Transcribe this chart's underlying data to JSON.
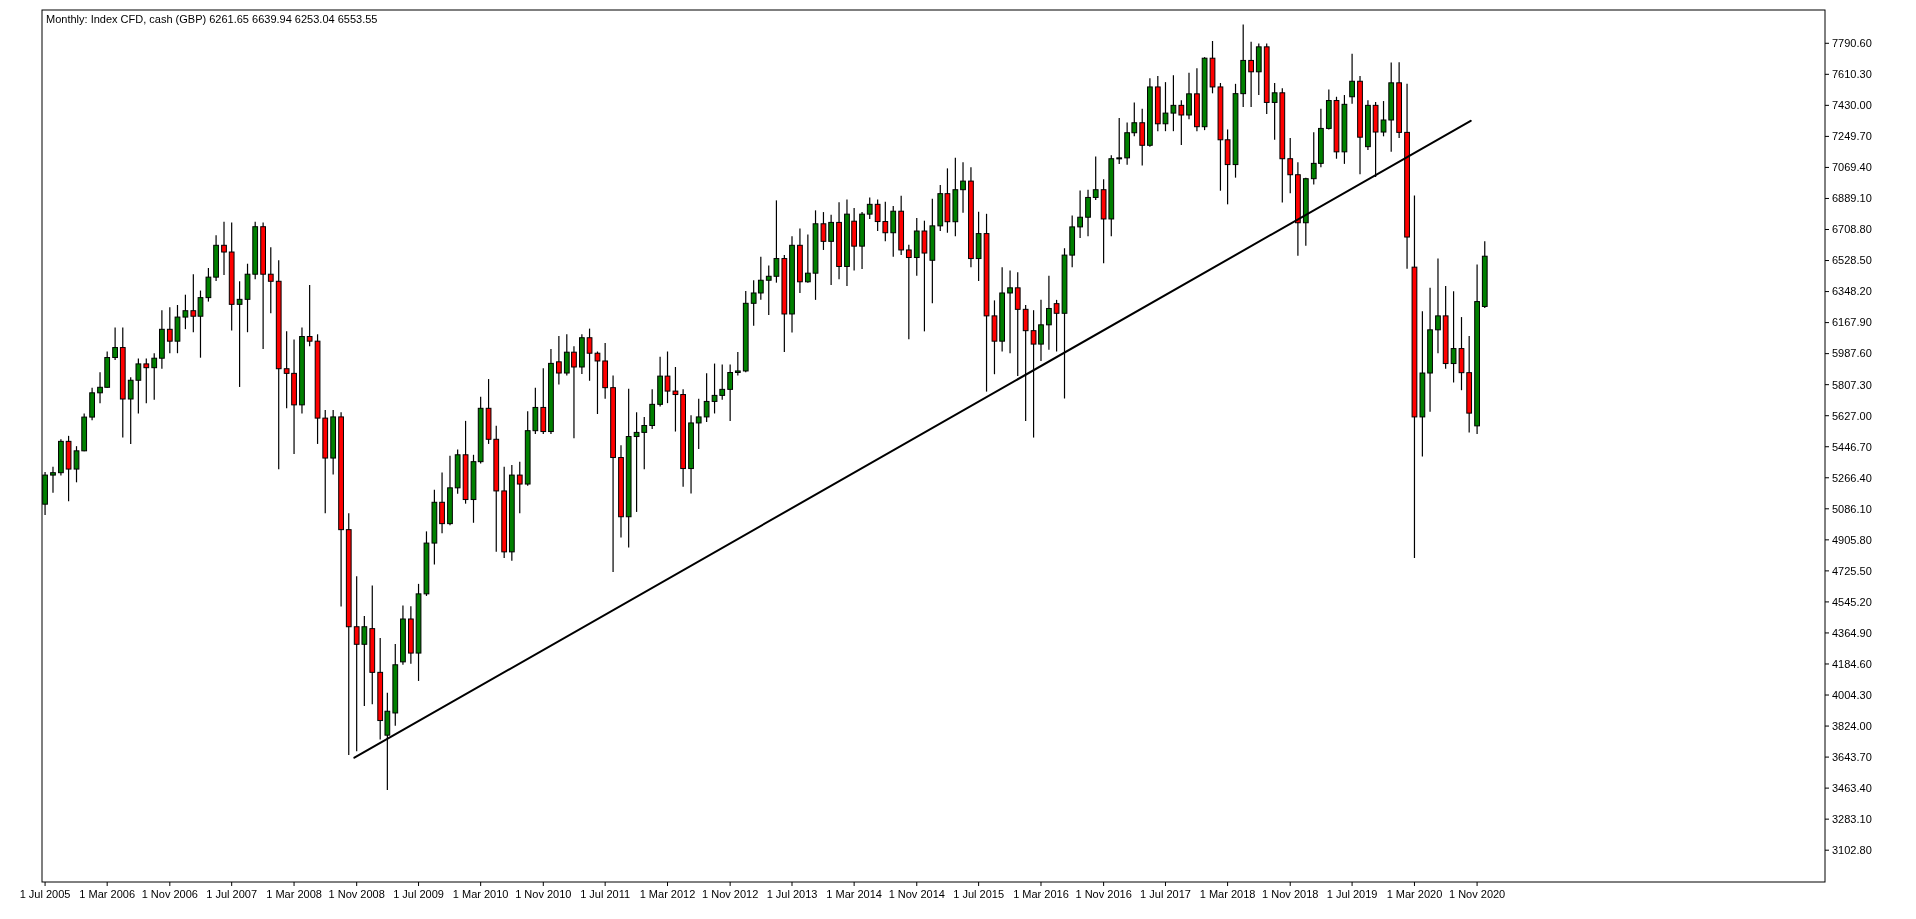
{
  "chart_data": {
    "type": "candlestick",
    "title": "Monthly: Index CFD, cash (GBP)  6261.65 6639.94 6253.04 6553.55",
    "x": [
      "2005-07",
      "2005-08",
      "2005-09",
      "2005-10",
      "2005-11",
      "2005-12",
      "2006-01",
      "2006-02",
      "2006-03",
      "2006-04",
      "2006-05",
      "2006-06",
      "2006-07",
      "2006-08",
      "2006-09",
      "2006-10",
      "2006-11",
      "2006-12",
      "2007-01",
      "2007-02",
      "2007-03",
      "2007-04",
      "2007-05",
      "2007-06",
      "2007-07",
      "2007-08",
      "2007-09",
      "2007-10",
      "2007-11",
      "2007-12",
      "2008-01",
      "2008-02",
      "2008-03",
      "2008-04",
      "2008-05",
      "2008-06",
      "2008-07",
      "2008-08",
      "2008-09",
      "2008-10",
      "2008-11",
      "2008-12",
      "2009-01",
      "2009-02",
      "2009-03",
      "2009-04",
      "2009-05",
      "2009-06",
      "2009-07",
      "2009-08",
      "2009-09",
      "2009-10",
      "2009-11",
      "2009-12",
      "2010-01",
      "2010-02",
      "2010-03",
      "2010-04",
      "2010-05",
      "2010-06",
      "2010-07",
      "2010-08",
      "2010-09",
      "2010-10",
      "2010-11",
      "2010-12",
      "2011-01",
      "2011-02",
      "2011-03",
      "2011-04",
      "2011-05",
      "2011-06",
      "2011-07",
      "2011-08",
      "2011-09",
      "2011-10",
      "2011-11",
      "2011-12",
      "2012-01",
      "2012-02",
      "2012-03",
      "2012-04",
      "2012-05",
      "2012-06",
      "2012-07",
      "2012-08",
      "2012-09",
      "2012-10",
      "2012-11",
      "2012-12",
      "2013-01",
      "2013-02",
      "2013-03",
      "2013-04",
      "2013-05",
      "2013-06",
      "2013-07",
      "2013-08",
      "2013-09",
      "2013-10",
      "2013-11",
      "2013-12",
      "2014-01",
      "2014-02",
      "2014-03",
      "2014-04",
      "2014-05",
      "2014-06",
      "2014-07",
      "2014-08",
      "2014-09",
      "2014-10",
      "2014-11",
      "2014-12",
      "2015-01",
      "2015-02",
      "2015-03",
      "2015-04",
      "2015-05",
      "2015-06",
      "2015-07",
      "2015-08",
      "2015-09",
      "2015-10",
      "2015-11",
      "2015-12",
      "2016-01",
      "2016-02",
      "2016-03",
      "2016-04",
      "2016-05",
      "2016-06",
      "2016-07",
      "2016-08",
      "2016-09",
      "2016-10",
      "2016-11",
      "2016-12",
      "2017-01",
      "2017-02",
      "2017-03",
      "2017-04",
      "2017-05",
      "2017-06",
      "2017-07",
      "2017-08",
      "2017-09",
      "2017-10",
      "2017-11",
      "2017-12",
      "2018-01",
      "2018-02",
      "2018-03",
      "2018-04",
      "2018-05",
      "2018-06",
      "2018-07",
      "2018-08",
      "2018-09",
      "2018-10",
      "2018-11",
      "2018-12",
      "2019-01",
      "2019-02",
      "2019-03",
      "2019-04",
      "2019-05",
      "2019-06",
      "2019-07",
      "2019-08",
      "2019-09",
      "2019-10",
      "2019-11",
      "2019-12",
      "2020-01",
      "2020-02",
      "2020-03",
      "2020-04",
      "2020-05",
      "2020-06",
      "2020-07",
      "2020-08",
      "2020-09",
      "2020-10",
      "2020-11",
      "2020-12"
    ],
    "ohlc": [
      [
        5113,
        5300,
        5050,
        5282
      ],
      [
        5282,
        5330,
        5180,
        5296
      ],
      [
        5296,
        5490,
        5280,
        5478
      ],
      [
        5478,
        5510,
        5130,
        5317
      ],
      [
        5317,
        5450,
        5240,
        5423
      ],
      [
        5423,
        5640,
        5420,
        5619
      ],
      [
        5619,
        5790,
        5600,
        5760
      ],
      [
        5760,
        5880,
        5700,
        5792
      ],
      [
        5792,
        6000,
        5790,
        5965
      ],
      [
        5965,
        6140,
        5950,
        6023
      ],
      [
        6023,
        6140,
        5500,
        5724
      ],
      [
        5724,
        5850,
        5463,
        5833
      ],
      [
        5833,
        5960,
        5640,
        5928
      ],
      [
        5928,
        5960,
        5700,
        5906
      ],
      [
        5906,
        5990,
        5720,
        5961
      ],
      [
        5961,
        6240,
        5900,
        6129
      ],
      [
        6129,
        6257,
        5990,
        6060
      ],
      [
        6060,
        6270,
        5990,
        6200
      ],
      [
        6200,
        6330,
        6130,
        6237
      ],
      [
        6237,
        6449,
        6112,
        6205
      ],
      [
        6205,
        6354,
        5964,
        6313
      ],
      [
        6313,
        6485,
        6290,
        6432
      ],
      [
        6432,
        6676,
        6410,
        6617
      ],
      [
        6617,
        6754,
        6445,
        6578
      ],
      [
        6578,
        6749,
        6122,
        6274
      ],
      [
        6274,
        6408,
        5794,
        6303
      ],
      [
        6303,
        6510,
        6112,
        6449
      ],
      [
        6449,
        6754,
        6420,
        6725
      ],
      [
        6725,
        6749,
        6015,
        6449
      ],
      [
        6449,
        6606,
        6222,
        6408
      ],
      [
        6408,
        6530,
        5316,
        5900
      ],
      [
        5900,
        6117,
        5670,
        5873
      ],
      [
        5873,
        6070,
        5405,
        5690
      ],
      [
        5690,
        6139,
        5640,
        6087
      ],
      [
        6087,
        6386,
        6030,
        6060
      ],
      [
        6060,
        6100,
        5463,
        5613
      ],
      [
        5613,
        5660,
        5061,
        5381
      ],
      [
        5381,
        5660,
        5286,
        5620
      ],
      [
        5620,
        5647,
        4519,
        4965
      ],
      [
        4965,
        5060,
        3656,
        4401
      ],
      [
        4401,
        4694,
        3677,
        4299
      ],
      [
        4299,
        4463,
        3940,
        4401
      ],
      [
        4390,
        4640,
        3950,
        4136
      ],
      [
        4136,
        4335,
        3746,
        3856
      ],
      [
        3771,
        4017,
        3452,
        3910
      ],
      [
        3900,
        4300,
        3826,
        4180
      ],
      [
        4197,
        4525,
        4180,
        4446
      ],
      [
        4446,
        4520,
        4186,
        4248
      ],
      [
        4248,
        4650,
        4086,
        4592
      ],
      [
        4592,
        4955,
        4580,
        4887
      ],
      [
        4887,
        5197,
        4763,
        5124
      ],
      [
        5124,
        5297,
        4944,
        5000
      ],
      [
        5000,
        5395,
        4990,
        5208
      ],
      [
        5208,
        5430,
        5174,
        5400
      ],
      [
        5400,
        5597,
        5116,
        5140
      ],
      [
        5140,
        5400,
        5005,
        5360
      ],
      [
        5360,
        5737,
        5350,
        5670
      ],
      [
        5670,
        5840,
        5463,
        5490
      ],
      [
        5490,
        5568,
        4836,
        5190
      ],
      [
        5190,
        5330,
        4800,
        4836
      ],
      [
        4836,
        5340,
        4784,
        5282
      ],
      [
        5282,
        5360,
        5060,
        5230
      ],
      [
        5230,
        5653,
        5220,
        5540
      ],
      [
        5540,
        5789,
        5520,
        5675
      ],
      [
        5675,
        5902,
        5520,
        5535
      ],
      [
        5535,
        6014,
        5520,
        5931
      ],
      [
        5940,
        6090,
        5808,
        5875
      ],
      [
        5875,
        6100,
        5860,
        5996
      ],
      [
        5996,
        6030,
        5496,
        5910
      ],
      [
        5910,
        6100,
        5870,
        6080
      ],
      [
        6080,
        6133,
        5830,
        5990
      ],
      [
        5990,
        6000,
        5637,
        5945
      ],
      [
        5945,
        6050,
        5726,
        5790
      ],
      [
        5790,
        5860,
        4719,
        5384
      ],
      [
        5384,
        5455,
        4920,
        5040
      ],
      [
        5040,
        5783,
        4862,
        5506
      ],
      [
        5506,
        5647,
        5068,
        5530
      ],
      [
        5530,
        5620,
        5316,
        5570
      ],
      [
        5570,
        5780,
        5550,
        5693
      ],
      [
        5693,
        5970,
        5680,
        5857
      ],
      [
        5857,
        6000,
        5700,
        5770
      ],
      [
        5770,
        5910,
        5535,
        5750
      ],
      [
        5750,
        5780,
        5214,
        5320
      ],
      [
        5320,
        5630,
        5175,
        5585
      ],
      [
        5585,
        5726,
        5433,
        5620
      ],
      [
        5620,
        5874,
        5590,
        5710
      ],
      [
        5710,
        5930,
        5640,
        5745
      ],
      [
        5745,
        5925,
        5720,
        5780
      ],
      [
        5780,
        5925,
        5596,
        5878
      ],
      [
        5878,
        5997,
        5860,
        5887
      ],
      [
        5887,
        6352,
        5880,
        6280
      ],
      [
        6280,
        6414,
        6150,
        6340
      ],
      [
        6340,
        6550,
        6300,
        6414
      ],
      [
        6414,
        6499,
        6212,
        6437
      ],
      [
        6437,
        6878,
        6400,
        6540
      ],
      [
        6540,
        6560,
        5997,
        6218
      ],
      [
        6218,
        6670,
        6110,
        6617
      ],
      [
        6617,
        6715,
        6340,
        6405
      ],
      [
        6405,
        6680,
        6400,
        6455
      ],
      [
        6455,
        6820,
        6300,
        6742
      ],
      [
        6742,
        6810,
        6590,
        6640
      ],
      [
        6640,
        6795,
        6386,
        6750
      ],
      [
        6750,
        6867,
        6420,
        6494
      ],
      [
        6494,
        6883,
        6380,
        6798
      ],
      [
        6757,
        6833,
        6470,
        6612
      ],
      [
        6612,
        6810,
        6480,
        6798
      ],
      [
        6798,
        6894,
        6770,
        6855
      ],
      [
        6855,
        6883,
        6700,
        6755
      ],
      [
        6755,
        6870,
        6640,
        6690
      ],
      [
        6690,
        6845,
        6550,
        6815
      ],
      [
        6815,
        6905,
        6560,
        6590
      ],
      [
        6590,
        6620,
        6071,
        6546
      ],
      [
        6546,
        6775,
        6440,
        6700
      ],
      [
        6700,
        6760,
        6117,
        6572
      ],
      [
        6530,
        6888,
        6280,
        6730
      ],
      [
        6730,
        6968,
        6700,
        6917
      ],
      [
        6917,
        7064,
        6690,
        6754
      ],
      [
        6754,
        7126,
        6670,
        6940
      ],
      [
        6940,
        7100,
        6806,
        6990
      ],
      [
        6990,
        7070,
        6490,
        6540
      ],
      [
        6540,
        6812,
        6410,
        6685
      ],
      [
        6685,
        6800,
        5767,
        6207
      ],
      [
        6207,
        6297,
        5868,
        6060
      ],
      [
        6060,
        6490,
        6000,
        6340
      ],
      [
        6340,
        6470,
        5990,
        6370
      ],
      [
        6370,
        6460,
        5857,
        6245
      ],
      [
        6245,
        6270,
        5596,
        6121
      ],
      [
        6121,
        6240,
        5500,
        6043
      ],
      [
        6043,
        6300,
        5945,
        6155
      ],
      [
        6155,
        6440,
        6010,
        6250
      ],
      [
        6278,
        6300,
        6000,
        6222
      ],
      [
        6222,
        6600,
        5727,
        6560
      ],
      [
        6560,
        6790,
        6490,
        6724
      ],
      [
        6724,
        6935,
        6660,
        6780
      ],
      [
        6780,
        6940,
        6670,
        6895
      ],
      [
        6895,
        7133,
        6880,
        6940
      ],
      [
        6940,
        7000,
        6513,
        6770
      ],
      [
        6770,
        7140,
        6670,
        7120
      ],
      [
        7120,
        7357,
        7090,
        7125
      ],
      [
        7125,
        7330,
        7085,
        7271
      ],
      [
        7271,
        7446,
        7250,
        7329
      ],
      [
        7329,
        7410,
        7080,
        7198
      ],
      [
        7198,
        7588,
        7190,
        7537
      ],
      [
        7537,
        7600,
        7280,
        7323
      ],
      [
        7323,
        7565,
        7280,
        7385
      ],
      [
        7385,
        7605,
        7280,
        7430
      ],
      [
        7430,
        7460,
        7200,
        7374
      ],
      [
        7374,
        7620,
        7350,
        7497
      ],
      [
        7497,
        7645,
        7280,
        7306
      ],
      [
        7306,
        7710,
        7286,
        7704
      ],
      [
        7704,
        7804,
        7500,
        7537
      ],
      [
        7537,
        7560,
        6934,
        7230
      ],
      [
        7230,
        7290,
        6855,
        7086
      ],
      [
        7086,
        7555,
        7010,
        7498
      ],
      [
        7498,
        7900,
        7420,
        7691
      ],
      [
        7691,
        7800,
        7420,
        7625
      ],
      [
        7625,
        7790,
        7490,
        7770
      ],
      [
        7770,
        7790,
        7380,
        7447
      ],
      [
        7447,
        7560,
        7230,
        7503
      ],
      [
        7503,
        7530,
        6866,
        7120
      ],
      [
        7120,
        7240,
        6920,
        7027
      ],
      [
        7027,
        7100,
        6557,
        6748
      ],
      [
        6748,
        7010,
        6615,
        7004
      ],
      [
        7004,
        7274,
        6970,
        7093
      ],
      [
        7093,
        7410,
        7070,
        7296
      ],
      [
        7296,
        7522,
        7290,
        7458
      ],
      [
        7458,
        7480,
        7120,
        7160
      ],
      [
        7160,
        7490,
        7090,
        7436
      ],
      [
        7480,
        7730,
        7440,
        7570
      ],
      [
        7570,
        7600,
        7030,
        7245
      ],
      [
        7190,
        7460,
        7170,
        7430
      ],
      [
        7430,
        7450,
        7014,
        7275
      ],
      [
        7275,
        7455,
        7250,
        7345
      ],
      [
        7345,
        7679,
        7160,
        7561
      ],
      [
        7561,
        7680,
        7240,
        7273
      ],
      [
        7273,
        7555,
        6481,
        6665
      ],
      [
        6490,
        6906,
        4800,
        5620
      ],
      [
        5620,
        6234,
        5390,
        5875
      ],
      [
        5875,
        6370,
        5650,
        6126
      ],
      [
        6126,
        6540,
        5990,
        6207
      ],
      [
        6207,
        6380,
        5900,
        5930
      ],
      [
        5930,
        6350,
        5820,
        6017
      ],
      [
        6017,
        6200,
        5775,
        5877
      ],
      [
        5877,
        6090,
        5530,
        5642
      ],
      [
        5568,
        6505,
        5520,
        6290
      ],
      [
        6261.65,
        6639.94,
        6253.04,
        6553.55
      ]
    ],
    "colors": [
      "#008000",
      "#008000",
      "#008000",
      "#ff0000",
      "#008000",
      "#008000",
      "#008000",
      "#008000",
      "#008000",
      "#008000",
      "#ff0000",
      "#008000",
      "#008000",
      "#ff0000",
      "#008000",
      "#008000",
      "#ff0000",
      "#008000",
      "#008000",
      "#ff0000",
      "#008000",
      "#008000",
      "#008000",
      "#ff0000",
      "#ff0000",
      "#008000",
      "#008000",
      "#008000",
      "#ff0000",
      "#ff0000",
      "#ff0000",
      "#ff0000",
      "#ff0000",
      "#008000",
      "#ff0000",
      "#ff0000",
      "#ff0000",
      "#008000",
      "#ff0000",
      "#ff0000",
      "#ff0000",
      "#008000",
      "#ff0000",
      "#ff0000",
      "#008000",
      "#008000",
      "#008000",
      "#ff0000",
      "#008000",
      "#008000",
      "#008000",
      "#ff0000",
      "#008000",
      "#008000",
      "#ff0000",
      "#008000",
      "#008000",
      "#ff0000",
      "#ff0000",
      "#ff0000",
      "#008000",
      "#ff0000",
      "#008000",
      "#008000",
      "#ff0000",
      "#008000",
      "#ff0000",
      "#008000",
      "#ff0000",
      "#008000",
      "#ff0000",
      "#ff0000",
      "#ff0000",
      "#ff0000",
      "#ff0000",
      "#008000",
      "#008000",
      "#008000",
      "#008000",
      "#008000",
      "#ff0000",
      "#ff0000",
      "#ff0000",
      "#008000",
      "#008000",
      "#008000",
      "#008000",
      "#008000",
      "#008000",
      "#008000",
      "#008000",
      "#008000",
      "#008000",
      "#008000",
      "#008000",
      "#ff0000",
      "#008000",
      "#ff0000",
      "#008000",
      "#008000",
      "#ff0000",
      "#008000",
      "#ff0000",
      "#008000",
      "#ff0000",
      "#008000",
      "#008000",
      "#ff0000",
      "#ff0000",
      "#008000",
      "#ff0000",
      "#ff0000",
      "#008000",
      "#ff0000",
      "#008000",
      "#008000",
      "#ff0000",
      "#008000",
      "#008000",
      "#ff0000",
      "#008000",
      "#ff0000",
      "#ff0000",
      "#008000",
      "#008000",
      "#ff0000",
      "#ff0000",
      "#ff0000",
      "#008000",
      "#008000",
      "#ff0000",
      "#008000",
      "#008000",
      "#008000",
      "#008000",
      "#008000",
      "#ff0000",
      "#008000",
      "#008000",
      "#008000",
      "#008000",
      "#ff0000",
      "#008000",
      "#ff0000",
      "#008000",
      "#008000",
      "#ff0000",
      "#008000",
      "#ff0000",
      "#008000",
      "#ff0000",
      "#ff0000",
      "#ff0000",
      "#008000",
      "#008000",
      "#ff0000",
      "#008000",
      "#ff0000",
      "#008000",
      "#ff0000",
      "#ff0000",
      "#ff0000",
      "#008000",
      "#008000",
      "#008000",
      "#008000",
      "#ff0000",
      "#008000",
      "#008000",
      "#ff0000",
      "#008000",
      "#ff0000",
      "#008000",
      "#008000",
      "#ff0000",
      "#ff0000",
      "#ff0000",
      "#008000",
      "#008000",
      "#008000",
      "#ff0000",
      "#008000",
      "#ff0000",
      "#ff0000",
      "#008000",
      "#008000"
    ],
    "series": [
      {
        "type": "line",
        "x": [
          "2008-10-23",
          "2020-10-07"
        ],
        "values": [
          3640,
          7340
        ],
        "color": "#000000"
      }
    ],
    "xlim": [
      "2005-06-19",
      "2024-07-24"
    ],
    "ylim": [
      2918,
      7984
    ],
    "xticks": [
      {
        "value": "2005-07",
        "label": "1 Jul 2005"
      },
      {
        "value": "2006-03",
        "label": "1 Mar 2006"
      },
      {
        "value": "2006-11",
        "label": "1 Nov 2006"
      },
      {
        "value": "2007-07",
        "label": "1 Jul 2007"
      },
      {
        "value": "2008-03",
        "label": "1 Mar 2008"
      },
      {
        "value": "2008-11",
        "label": "1 Nov 2008"
      },
      {
        "value": "2009-07",
        "label": "1 Jul 2009"
      },
      {
        "value": "2010-03",
        "label": "1 Mar 2010"
      },
      {
        "value": "2010-11",
        "label": "1 Nov 2010"
      },
      {
        "value": "2011-07",
        "label": "1 Jul 2011"
      },
      {
        "value": "2012-03",
        "label": "1 Mar 2012"
      },
      {
        "value": "2012-11",
        "label": "1 Nov 2012"
      },
      {
        "value": "2013-07",
        "label": "1 Jul 2013"
      },
      {
        "value": "2014-03",
        "label": "1 Mar 2014"
      },
      {
        "value": "2014-11",
        "label": "1 Nov 2014"
      },
      {
        "value": "2015-07",
        "label": "1 Jul 2015"
      },
      {
        "value": "2016-03",
        "label": "1 Mar 2016"
      },
      {
        "value": "2016-11",
        "label": "1 Nov 2016"
      },
      {
        "value": "2017-07",
        "label": "1 Jul 2017"
      },
      {
        "value": "2018-03",
        "label": "1 Mar 2018"
      },
      {
        "value": "2018-11",
        "label": "1 Nov 2018"
      },
      {
        "value": "2019-07",
        "label": "1 Jul 2019"
      },
      {
        "value": "2020-03",
        "label": "1 Mar 2020"
      },
      {
        "value": "2020-11",
        "label": "1 Nov 2020"
      }
    ],
    "yticks": [
      {
        "value": 7790.6,
        "label": "7790.60"
      },
      {
        "value": 7610.3,
        "label": "7610.30"
      },
      {
        "value": 7430,
        "label": "7430.00"
      },
      {
        "value": 7249.7,
        "label": "7249.70"
      },
      {
        "value": 7069.4,
        "label": "7069.40"
      },
      {
        "value": 6889.1,
        "label": "6889.10"
      },
      {
        "value": 6708.8,
        "label": "6708.80"
      },
      {
        "value": 6528.5,
        "label": "6528.50"
      },
      {
        "value": 6348.2,
        "label": "6348.20"
      },
      {
        "value": 6167.9,
        "label": "6167.90"
      },
      {
        "value": 5987.6,
        "label": "5987.60"
      },
      {
        "value": 5807.3,
        "label": "5807.30"
      },
      {
        "value": 5627,
        "label": "5627.00"
      },
      {
        "value": 5446.7,
        "label": "5446.70"
      },
      {
        "value": 5266.4,
        "label": "5266.40"
      },
      {
        "value": 5086.1,
        "label": "5086.10"
      },
      {
        "value": 4905.8,
        "label": "4905.80"
      },
      {
        "value": 4725.5,
        "label": "4725.50"
      },
      {
        "value": 4545.2,
        "label": "4545.20"
      },
      {
        "value": 4364.9,
        "label": "4364.90"
      },
      {
        "value": 4184.6,
        "label": "4184.60"
      },
      {
        "value": 4004.3,
        "label": "4004.30"
      },
      {
        "value": 3824,
        "label": "3824.00"
      },
      {
        "value": 3643.7,
        "label": "3643.70"
      },
      {
        "value": 3463.4,
        "label": "3463.40"
      },
      {
        "value": 3283.1,
        "label": "3283.10"
      },
      {
        "value": 3102.8,
        "label": "3102.80"
      }
    ]
  }
}
